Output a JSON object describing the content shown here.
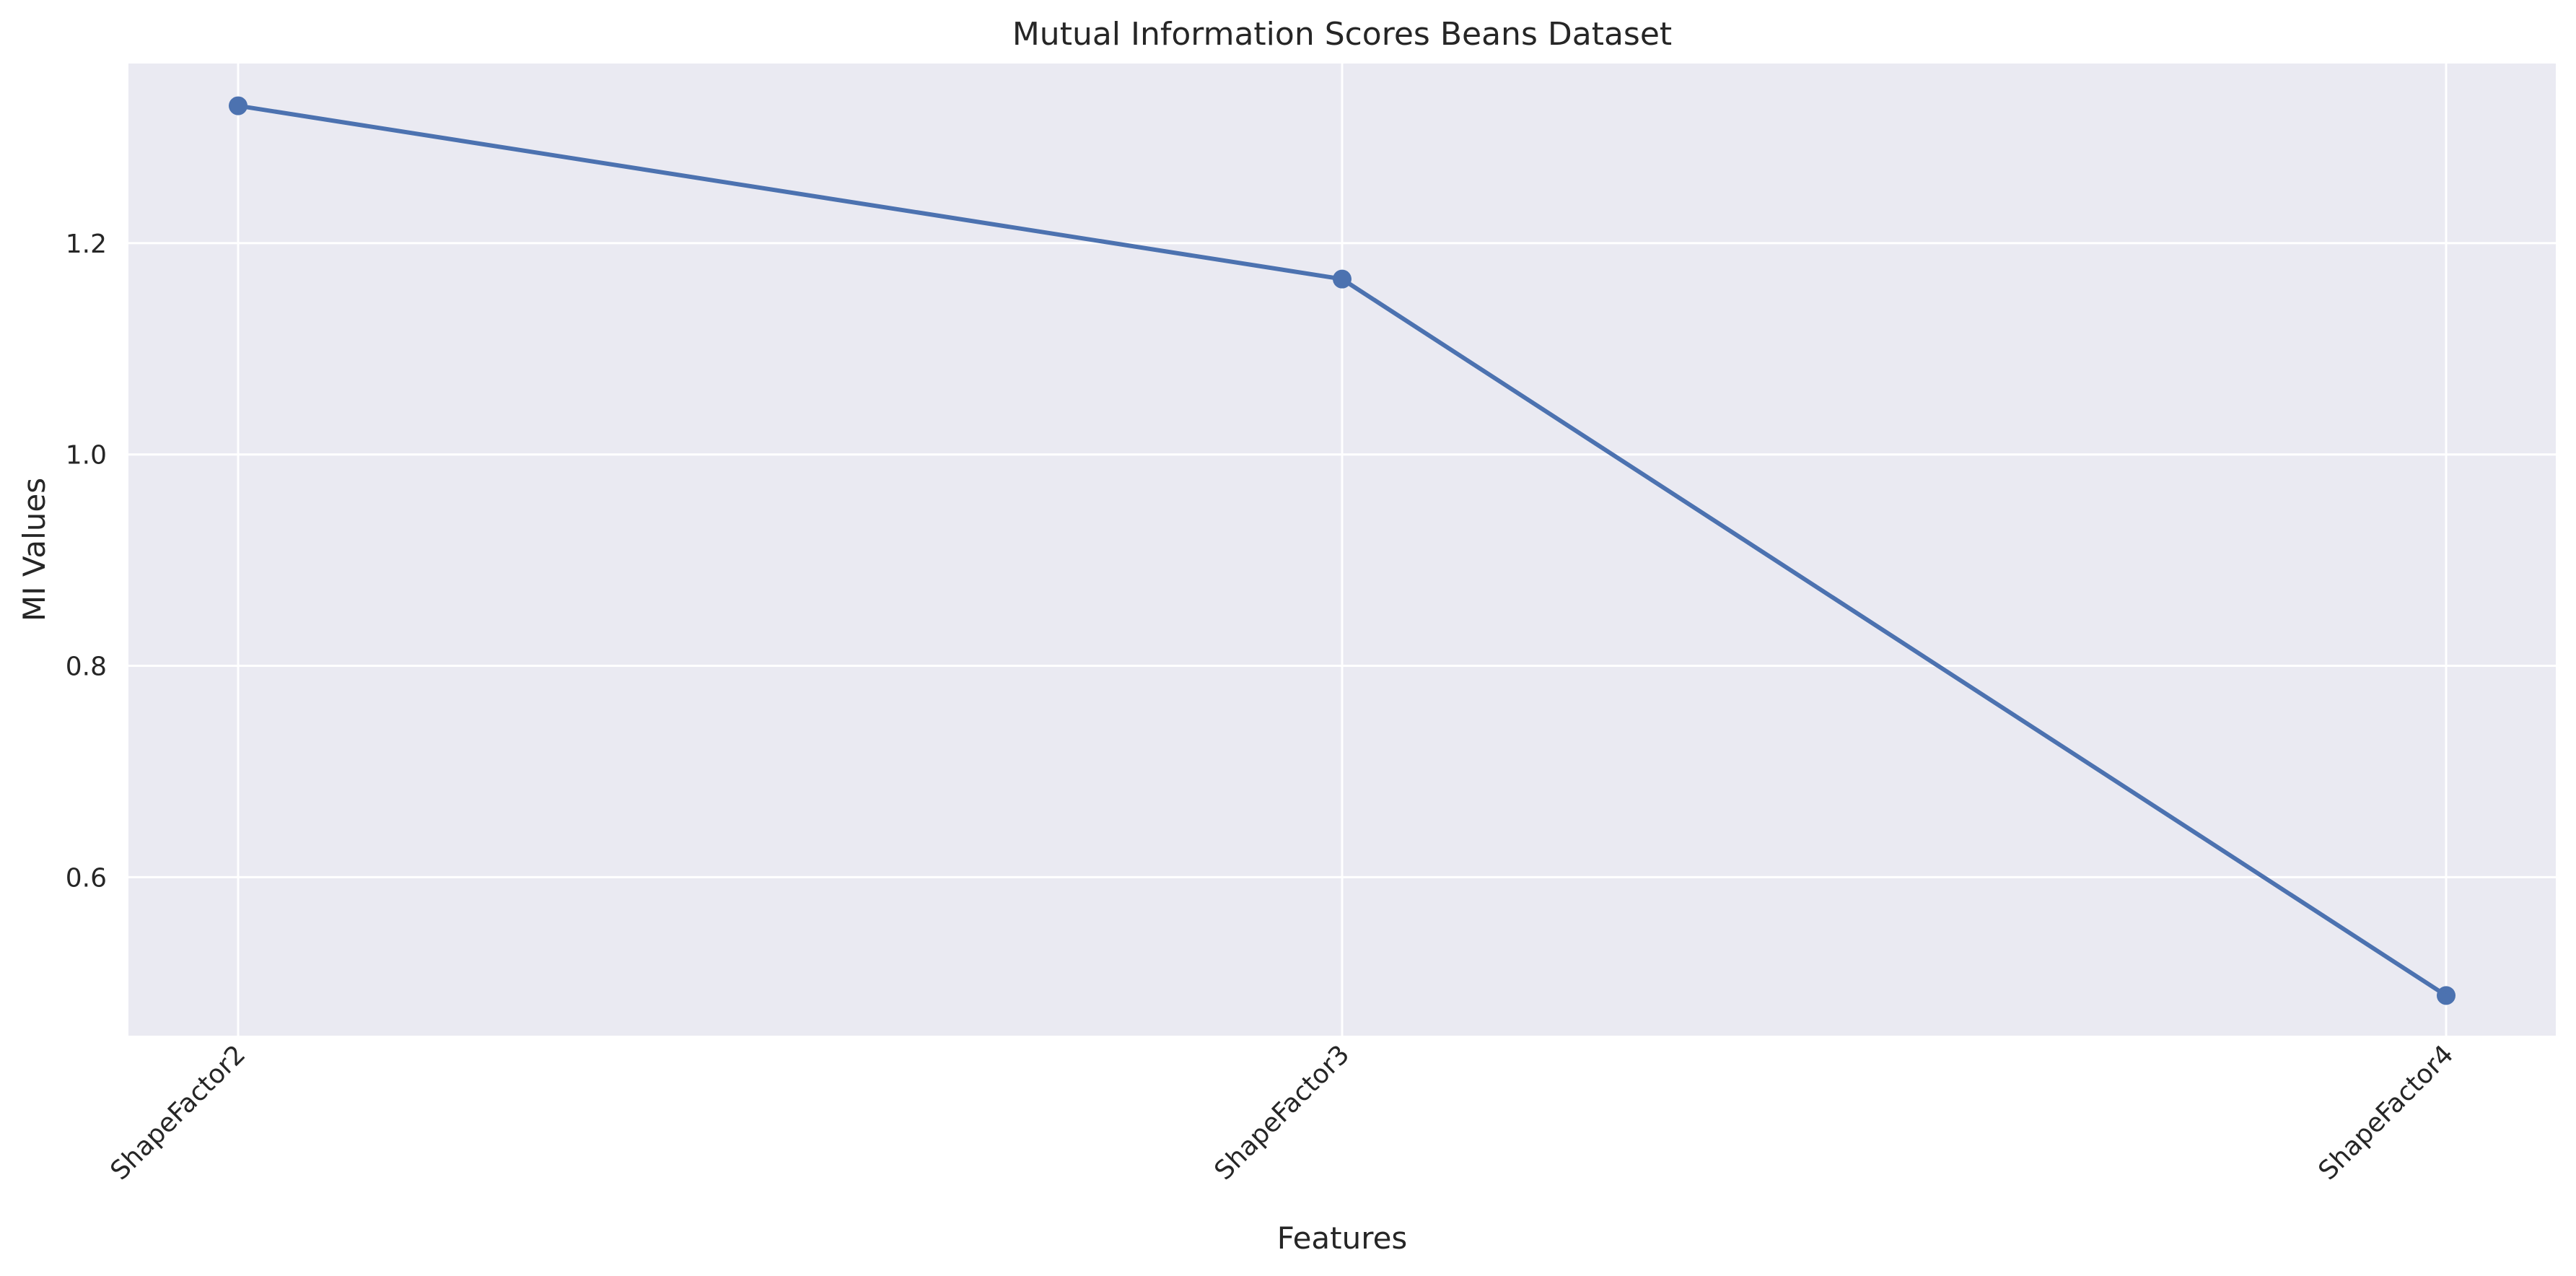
{
  "chart_data": {
    "type": "line",
    "title": "Mutual Information Scores Beans Dataset",
    "xlabel": "Features",
    "ylabel": "MI Values",
    "categories": [
      "ShapeFactor2",
      "ShapeFactor3",
      "ShapeFactor4"
    ],
    "series": [
      {
        "values": [
          1.33,
          1.166,
          0.488
        ]
      }
    ],
    "ylim": [
      0.45,
      1.37
    ],
    "yticks": [
      0.6,
      0.8,
      1.0,
      1.2
    ],
    "ytick_labels": [
      "0.6",
      "0.8",
      "1.0",
      "1.2"
    ],
    "grid": true,
    "marker": "circle",
    "xtick_rotation": 45,
    "colors": {
      "line": "#4c72b0",
      "plot_background": "#eaeaf2",
      "grid": "#ffffff",
      "text": "#262626"
    }
  }
}
